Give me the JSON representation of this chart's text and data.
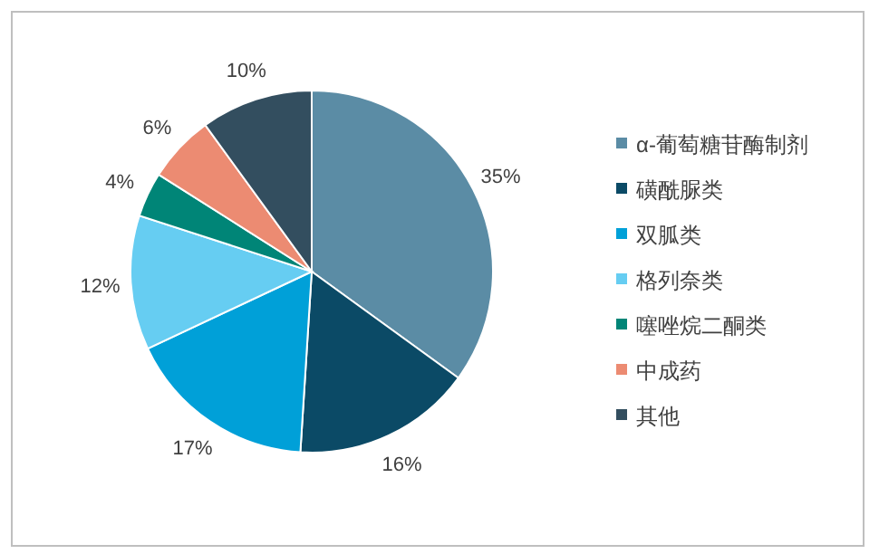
{
  "chart_data": {
    "type": "pie",
    "categories": [
      "α-葡萄糖苷酶制剂",
      "磺酰脲类",
      "双胍类",
      "格列奈类",
      "噻唑烷二酮类",
      "中成药",
      "其他"
    ],
    "values": [
      35,
      16,
      17,
      12,
      4,
      6,
      10
    ],
    "colors": [
      "#5b8ca5",
      "#0b4a66",
      "#00a0d8",
      "#66cdf2",
      "#008577",
      "#ec8b72",
      "#334e5f"
    ],
    "value_labels": [
      "35%",
      "16%",
      "17%",
      "12%",
      "4%",
      "6%",
      "10%"
    ],
    "legend": "right"
  }
}
